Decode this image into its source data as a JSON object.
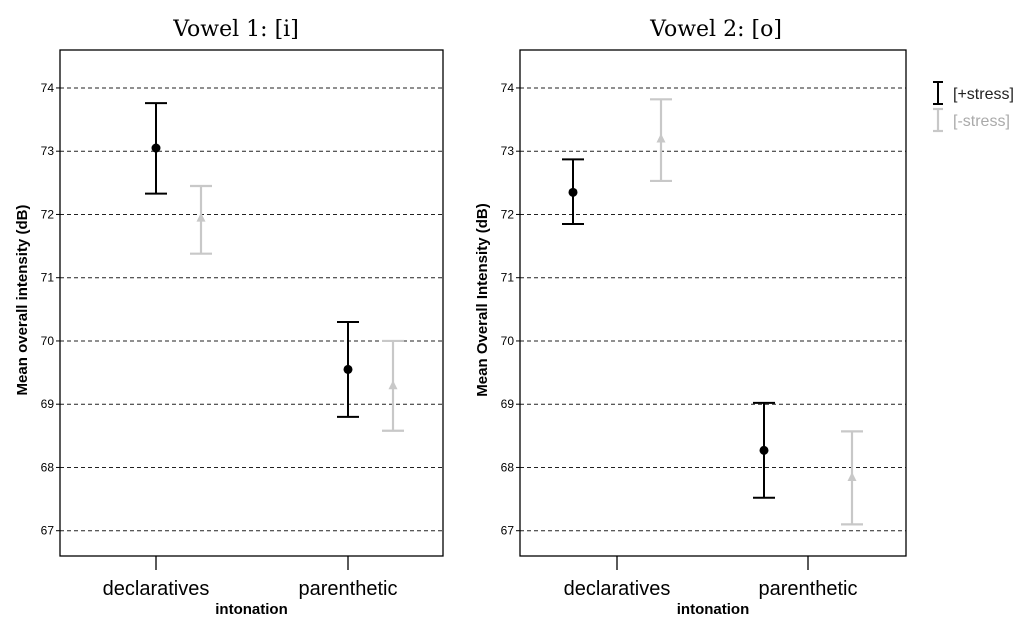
{
  "chart_data": [
    {
      "type": "errorbar",
      "title": "Vowel 1: [i]",
      "xlabel": "intonation",
      "ylabel": "Mean overall intensity (dB)",
      "categories": [
        "declaratives",
        "parenthetic"
      ],
      "ylim": [
        66.6,
        74.6
      ],
      "yticks": [
        "67",
        "68",
        "69",
        "70",
        "71",
        "72",
        "73",
        "74"
      ],
      "grid": true,
      "series": [
        {
          "name": "[+stress]",
          "color": "#000000",
          "marker": "circle",
          "means": [
            73.05,
            69.55
          ],
          "lower": [
            72.33,
            68.8
          ],
          "upper": [
            73.76,
            70.3
          ]
        },
        {
          "name": "[-stress]",
          "color": "#c8c8c8",
          "marker": "triangle",
          "means": [
            71.95,
            69.3
          ],
          "lower": [
            71.38,
            68.58
          ],
          "upper": [
            72.45,
            70.0
          ]
        }
      ]
    },
    {
      "type": "errorbar",
      "title": "Vowel 2: [o]",
      "xlabel": "intonation",
      "ylabel": "Mean Overall Intensity (dB)",
      "categories": [
        "declaratives",
        "parenthetic"
      ],
      "ylim": [
        66.6,
        74.6
      ],
      "yticks": [
        "67",
        "68",
        "69",
        "70",
        "71",
        "72",
        "73",
        "74"
      ],
      "grid": true,
      "series": [
        {
          "name": "[+stress]",
          "color": "#000000",
          "marker": "circle",
          "means": [
            72.35,
            68.27
          ],
          "lower": [
            71.85,
            67.52
          ],
          "upper": [
            72.87,
            69.02
          ]
        },
        {
          "name": "[-stress]",
          "color": "#c8c8c8",
          "marker": "triangle",
          "means": [
            73.2,
            67.85
          ],
          "lower": [
            72.53,
            67.1
          ],
          "upper": [
            73.82,
            68.57
          ]
        }
      ]
    }
  ],
  "legend": {
    "position": "right",
    "items": [
      {
        "label": "[+stress]",
        "color": "#000000"
      },
      {
        "label": "[-stress]",
        "color": "#c8c8c8"
      }
    ]
  }
}
